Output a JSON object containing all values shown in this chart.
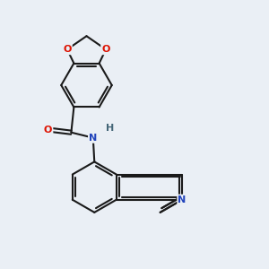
{
  "bg": "#eaeff5",
  "bc": "#1a1a1a",
  "Oc": "#dd1100",
  "Nc": "#2244bb",
  "Hc": "#446677",
  "lw": 1.5,
  "dpi": 100,
  "figsize": [
    3.0,
    3.0
  ],
  "xlim": [
    0,
    10
  ],
  "ylim": [
    0,
    10
  ]
}
